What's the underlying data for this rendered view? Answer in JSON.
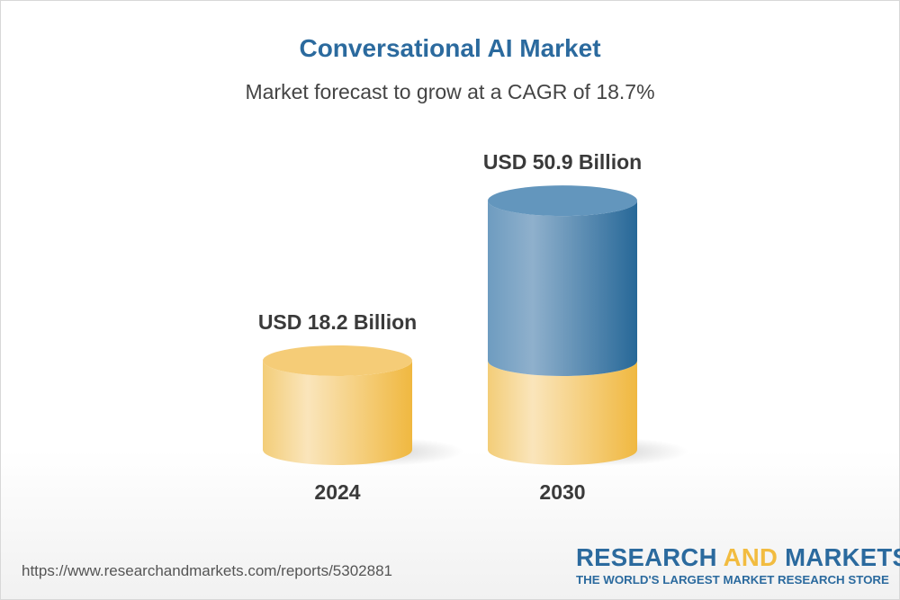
{
  "title": "Conversational AI Market",
  "subtitle": "Market forecast to grow at a CAGR of 18.7%",
  "chart_data": {
    "type": "bar",
    "style": "3d-cylinder",
    "categories": [
      "2024",
      "2030"
    ],
    "values": [
      18.2,
      50.9
    ],
    "value_labels": [
      "USD 18.2 Billion",
      "USD 50.9 Billion"
    ],
    "unit": "USD Billion",
    "cagr": "18.7%",
    "colors": {
      "base": "#f2bc40",
      "growth": "#2b6a9e"
    }
  },
  "footer": {
    "url": "https://www.researchandmarkets.com/reports/5302881",
    "logo_part1": "RESEARCH ",
    "logo_part2": "AND",
    "logo_part3": " MARKETS",
    "logo_tagline": "THE WORLD'S LARGEST MARKET RESEARCH STORE"
  }
}
